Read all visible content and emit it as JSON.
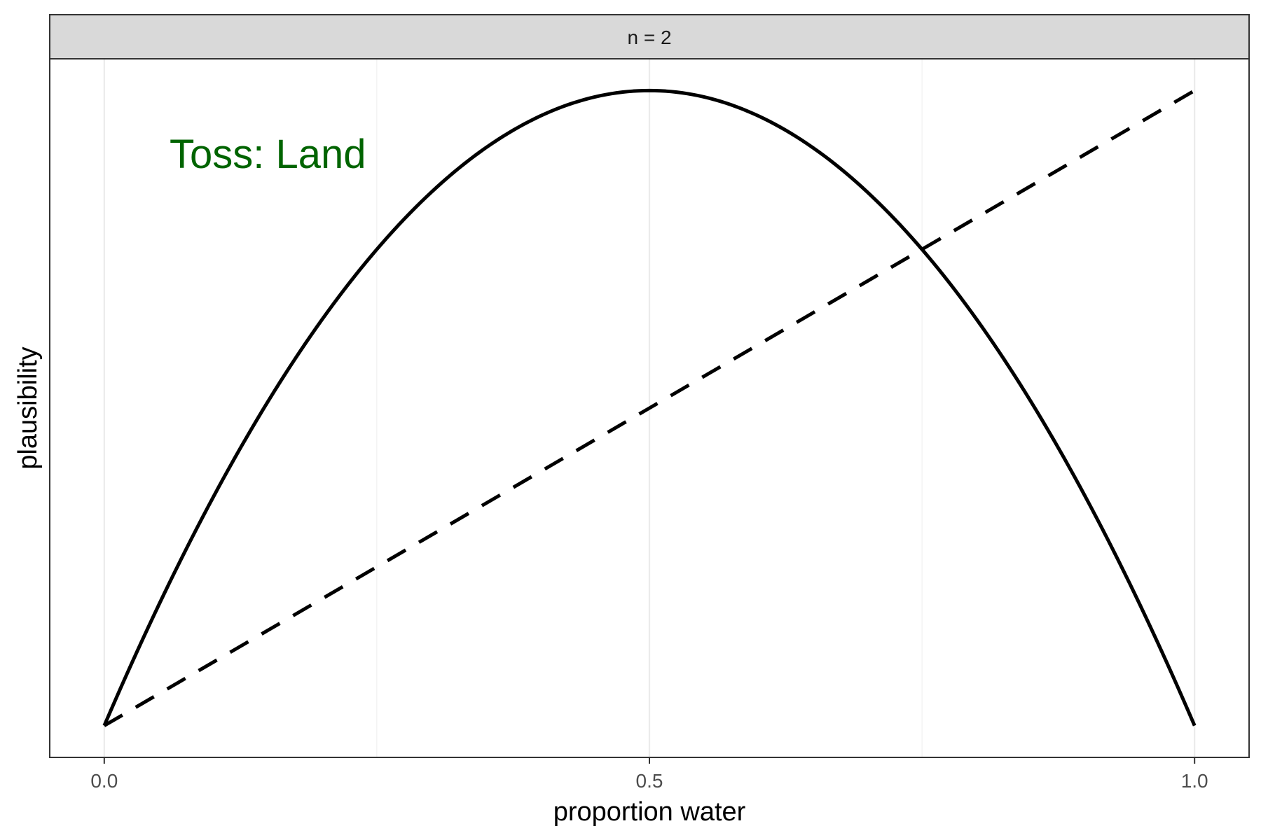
{
  "chart_data": {
    "type": "line",
    "facet_label": "n = 2",
    "xlabel": "proportion water",
    "ylabel": "plausibility",
    "xlim": [
      -0.05,
      1.05
    ],
    "ylim": [
      -0.05,
      1.05
    ],
    "x_ticks": [
      0,
      0.5,
      1
    ],
    "x_tick_labels": [
      "0.0",
      "0.5",
      "1.0"
    ],
    "x_minor_gridlines": [
      0.25,
      0.75
    ],
    "y_ticks_shown": false,
    "grid": "vertical only",
    "legend": "none",
    "annotation": {
      "text": "Toss: Land",
      "color": "#006400",
      "x": 0.15,
      "y": 0.9
    },
    "series": [
      {
        "style": "solid",
        "color": "#000000",
        "x": [
          0,
          0.05,
          0.1,
          0.15,
          0.2,
          0.25,
          0.3,
          0.35,
          0.4,
          0.45,
          0.5,
          0.55,
          0.6,
          0.65,
          0.7,
          0.75,
          0.8,
          0.85,
          0.9,
          0.95,
          1
        ],
        "y": [
          0,
          0.19,
          0.36,
          0.51,
          0.64,
          0.75,
          0.84,
          0.91,
          0.96,
          0.99,
          1.0,
          0.99,
          0.96,
          0.91,
          0.84,
          0.75,
          0.64,
          0.51,
          0.36,
          0.19,
          0
        ]
      },
      {
        "style": "dashed",
        "color": "#000000",
        "x": [
          0,
          0.1,
          0.2,
          0.3,
          0.4,
          0.5,
          0.6,
          0.7,
          0.8,
          0.9,
          1
        ],
        "y": [
          0,
          0.1,
          0.2,
          0.3,
          0.4,
          0.5,
          0.6,
          0.7,
          0.8,
          0.9,
          1.0
        ]
      }
    ]
  }
}
